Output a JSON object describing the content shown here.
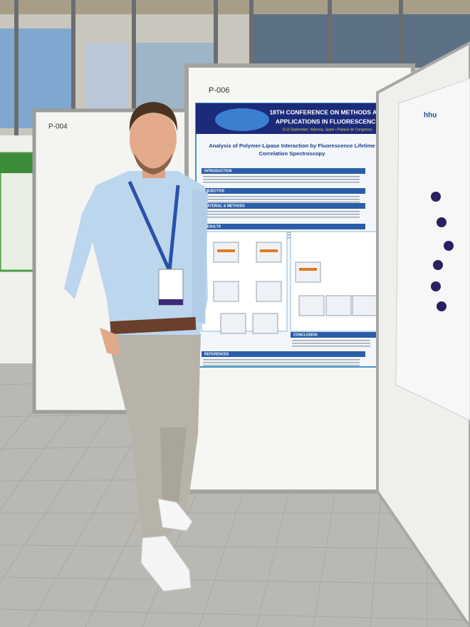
{
  "labels": {
    "center_board": "P-006",
    "left_board": "P-004"
  },
  "poster": {
    "conference_lines": [
      "18TH CONFERENCE ON METHODS AND",
      "APPLICATIONS IN FLUORESCENCE"
    ],
    "dates": "8-11 September, Valencia, Spain • Palacio de Congresos",
    "title_lines": [
      "Analysis of Polymer-Lipase Interaction by Fluorescence Lifetime",
      "Correlation Spectroscopy"
    ],
    "sections": [
      "INTRODUCTION",
      "OBJECTIVE",
      "MATERIAL & METHODS",
      "RESULTS",
      "CONCLUSION",
      "REFERENCES"
    ]
  },
  "right_poster": {
    "logo": "hhu"
  }
}
